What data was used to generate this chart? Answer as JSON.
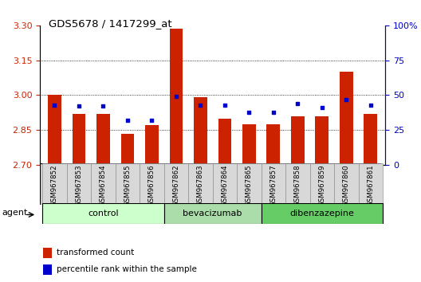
{
  "title": "GDS5678 / 1417299_at",
  "samples": [
    "GSM967852",
    "GSM967853",
    "GSM967854",
    "GSM967855",
    "GSM967856",
    "GSM967862",
    "GSM967863",
    "GSM967864",
    "GSM967865",
    "GSM967857",
    "GSM967858",
    "GSM967859",
    "GSM967860",
    "GSM967861"
  ],
  "red_values": [
    3.0,
    2.92,
    2.92,
    2.835,
    2.87,
    3.285,
    2.99,
    2.9,
    2.875,
    2.875,
    2.91,
    2.91,
    3.1,
    2.92
  ],
  "blue_values": [
    43,
    42,
    42,
    32,
    32,
    49,
    43,
    43,
    38,
    38,
    44,
    41,
    47,
    43
  ],
  "ylim_left": [
    2.7,
    3.3
  ],
  "ylim_right": [
    0,
    100
  ],
  "yticks_left": [
    2.7,
    2.85,
    3.0,
    3.15,
    3.3
  ],
  "yticks_right": [
    0,
    25,
    50,
    75,
    100
  ],
  "group_ranges": [
    [
      0,
      4
    ],
    [
      5,
      8
    ],
    [
      9,
      13
    ]
  ],
  "group_labels": [
    "control",
    "bevacizumab",
    "dibenzazepine"
  ],
  "group_colors": [
    "#ccffcc",
    "#aaddaa",
    "#66cc66"
  ],
  "bar_color": "#cc2200",
  "dot_color": "#0000cc",
  "bar_bottom": 2.7,
  "grid_color": "#000000",
  "left_tick_color": "#cc2200",
  "right_tick_color": "#0000cc",
  "legend_items": [
    {
      "label": "transformed count",
      "color": "#cc2200"
    },
    {
      "label": "percentile rank within the sample",
      "color": "#0000cc"
    }
  ]
}
